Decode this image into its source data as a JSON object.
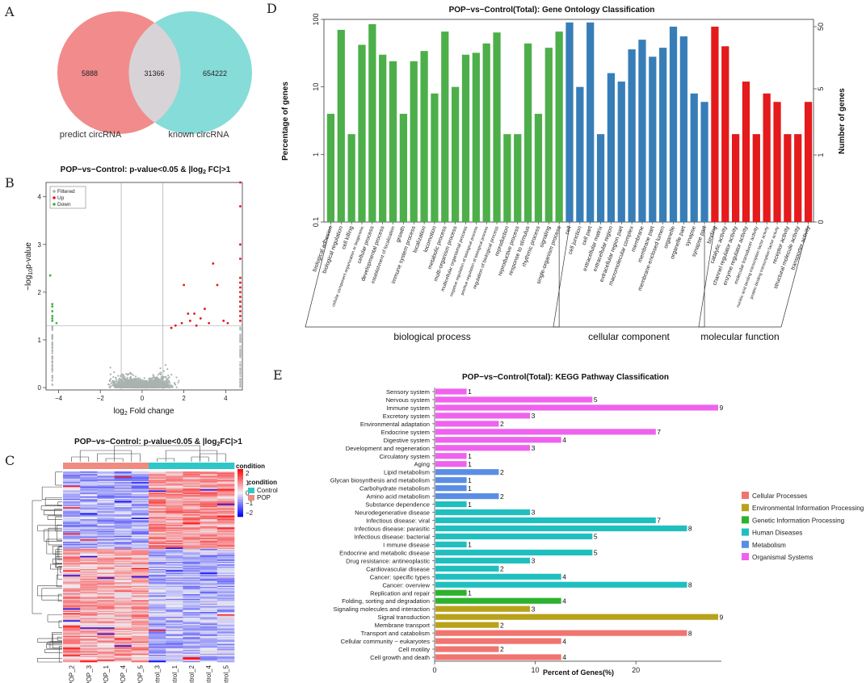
{
  "panels": {
    "a": "A",
    "b": "B",
    "c": "C",
    "d": "D",
    "e": "E"
  },
  "chart_data": [
    {
      "type": "venn",
      "sets": [
        "predict circRNA",
        "known circRNA"
      ],
      "left_only": "5888",
      "intersection": "31366",
      "right_only": "654222",
      "colors": {
        "left": "#f28b8b",
        "right": "#86dcd8",
        "overlap": "#d8d3d6"
      }
    },
    {
      "type": "scatter",
      "title_pre": "POP−vs−Control: p-value<0.05 & |log",
      "title_sub": "2",
      "title_post": " FC|>1",
      "xlabel_pre": "log",
      "xlabel_sub": "2",
      "xlabel_post": " Fold change",
      "ylabel_pre": "−log",
      "ylabel_sub": "10",
      "ylabel_post": "p-value",
      "xlim": [
        -4.6,
        4.8
      ],
      "ylim": [
        -0.05,
        4.3
      ],
      "xticks": [
        -4,
        -2,
        0,
        2,
        4
      ],
      "yticks": [
        0,
        1,
        2,
        3,
        4
      ],
      "xtick_labels": [
        "−4",
        "−2",
        "0",
        "2",
        "4"
      ],
      "ytick_labels": [
        "0",
        "1",
        "2",
        "3",
        "4"
      ],
      "thresholds": {
        "x": [
          -1,
          1
        ],
        "y": 1.3
      },
      "legend": [
        "Filtered",
        "Up",
        "Down"
      ],
      "colors": {
        "Filtered": "#a9b2b0",
        "Up": "#e4131b",
        "Down": "#3fb23f"
      },
      "up_points": [
        [
          1.4,
          1.25
        ],
        [
          1.6,
          1.3
        ],
        [
          1.9,
          1.35
        ],
        [
          2.0,
          2.15
        ],
        [
          2.2,
          1.55
        ],
        [
          2.3,
          1.4
        ],
        [
          2.5,
          1.55
        ],
        [
          2.6,
          1.3
        ],
        [
          2.8,
          1.45
        ],
        [
          3.0,
          1.65
        ],
        [
          3.2,
          1.35
        ],
        [
          3.4,
          2.6
        ],
        [
          3.6,
          2.15
        ],
        [
          3.9,
          1.4
        ],
        [
          4.1,
          1.35
        ],
        [
          4.7,
          4.3
        ],
        [
          4.7,
          3.8
        ],
        [
          4.7,
          3.0
        ],
        [
          4.7,
          2.7
        ],
        [
          4.7,
          2.3
        ],
        [
          4.7,
          2.2
        ],
        [
          4.7,
          2.1
        ],
        [
          4.7,
          2.0
        ],
        [
          4.7,
          1.9
        ],
        [
          4.7,
          1.8
        ],
        [
          4.7,
          1.7
        ],
        [
          4.7,
          1.6
        ],
        [
          4.7,
          1.5
        ],
        [
          4.7,
          1.4
        ]
      ],
      "down_points": [
        [
          -4.3,
          1.75
        ],
        [
          -4.3,
          1.7
        ],
        [
          -4.3,
          1.6
        ],
        [
          -4.3,
          1.5
        ],
        [
          -4.3,
          1.45
        ],
        [
          -4.3,
          1.4
        ],
        [
          -4.1,
          1.35
        ],
        [
          -4.4,
          2.35
        ]
      ]
    },
    {
      "type": "heatmap",
      "title_pre": "POP−vs−Control: p-value<0.05 & |log",
      "title_sub": "2",
      "title_post": "FC|>1",
      "columns": [
        "POP_2",
        "POP_3",
        "POP_1",
        "POP_4",
        "POP_5",
        "Control_3",
        "Control_1",
        "Control_2",
        "Control_4",
        "Control_5"
      ],
      "condition_label": "condition",
      "legend_title": "condition",
      "groups": [
        "Control",
        "POP"
      ],
      "group_colors": {
        "Control": "#2ec7c9",
        "POP": "#f08c7f"
      },
      "scale_ticks": [
        "2",
        "1",
        "0",
        "−1",
        "−2"
      ],
      "scale_range": [
        -2.4,
        2.4
      ],
      "row_count": 160
    },
    {
      "type": "bar",
      "title": "POP−vs−Control(Total): Gene Ontology Classification",
      "ylabel": "Percentage of genes",
      "ylabel_right": "Number of genes",
      "yscale": "log",
      "ylim": [
        0.1,
        100
      ],
      "yticks": [
        "100",
        "10",
        "1",
        "0.1"
      ],
      "right_ticks": [
        "50",
        "5",
        "1",
        "0"
      ],
      "categories": [
        "biological adhesion",
        "biological regulation",
        "cell killing",
        "cellular component organization or biogenesis",
        "cellular process",
        "developmental process",
        "establishment of localization",
        "growth",
        "immune system process",
        "localization",
        "locomotion",
        "metabolic process",
        "multi-organism process",
        "multicellular organismal process",
        "negative regulation of biological process",
        "positive regulation of biological process",
        "regulation of biological process",
        "reproduction",
        "reproductive process",
        "response to stimulus",
        "rhythmic process",
        "signaling",
        "single-organism process",
        "cell",
        "cell junction",
        "cell part",
        "extracellular matrix",
        "extracellular region",
        "extracellular region part",
        "macromolecular complex",
        "membrane",
        "membrane part",
        "membrane-enclosed lumen",
        "organelle",
        "organelle part",
        "synapse",
        "synapse part",
        "binding",
        "catalytic activity",
        "channel regulator activity",
        "enzyme regulator activity",
        "molecular transducer activity",
        "nucleic acid binding transcription factor activity",
        "protein binding transcription factor activity",
        "receptor activity",
        "structural molecule activity",
        "transporter activity"
      ],
      "values": [
        4,
        70,
        2,
        42,
        85,
        30,
        24,
        4,
        24,
        34,
        8,
        66,
        10,
        30,
        32,
        44,
        64,
        2,
        2,
        44,
        4,
        38,
        66,
        90,
        10,
        90,
        2,
        16,
        12,
        36,
        50,
        28,
        38,
        78,
        56,
        8,
        6,
        78,
        40,
        2,
        12,
        2,
        8,
        6,
        2,
        2,
        6
      ],
      "groups": [
        {
          "name": "biological process",
          "start": 0,
          "end": 22
        },
        {
          "name": "cellular component",
          "start": 23,
          "end": 36
        },
        {
          "name": "molecular function",
          "start": 37,
          "end": 46
        }
      ],
      "colors": {
        "biological process": "#4daf4a",
        "cellular component": "#377eb8",
        "molecular function": "#e41a1c"
      }
    },
    {
      "type": "bar",
      "orientation": "horizontal",
      "title": "POP−vs−Control(Total): KEGG Pathway Classification",
      "xlabel": "Percent of Genes(%)",
      "xlim": [
        0,
        28.5
      ],
      "xticks": [
        0,
        10,
        20
      ],
      "xtick_labels": [
        "0",
        "10",
        "20"
      ],
      "categories": [
        "Sensory system",
        "Nervous system",
        "Immune system",
        "Excretory system",
        "Environmental adaptation",
        "Endocrine system",
        "Digestive system",
        "Development and regeneration",
        "Circulatory system",
        "Aging",
        "Lipid metabolism",
        "Glycan biosynthesis and metabolism",
        "Carbohydrate metabolism",
        "Amino acid metabolism",
        "Substance dependence",
        "Neurodegenerative disease",
        "Infectious disease: viral",
        "Infectious disease: parasitic",
        "Infectious disease: bacterial",
        "I mmune disease",
        "Endocrine and metabolic disease",
        "Drug resistance: antineoplastic",
        "Cardiovascular disease",
        "Cancer: specific types",
        "Cancer: overview",
        "Replication and repair",
        "Folding, sorting and degradation",
        "Signaling molecules and interaction",
        "Signal transduction",
        "Membrane transport",
        "Transport and catabolism",
        "Cellular community − eukaryotes",
        "Cell motility",
        "Cell growth and death"
      ],
      "counts": [
        "1",
        "5",
        "9",
        "3",
        "2",
        "7",
        "4",
        "3",
        "1",
        "1",
        "2",
        "1",
        "1",
        "2",
        "1",
        "3",
        "7",
        "8",
        "5",
        "1",
        "5",
        "3",
        "2",
        "4",
        "8",
        "1",
        "4",
        "3",
        "9",
        "2",
        "8",
        "4",
        "2",
        "4"
      ],
      "percent": [
        3.1,
        15.6,
        28.1,
        9.4,
        6.3,
        21.9,
        12.5,
        9.4,
        3.1,
        3.1,
        6.3,
        3.1,
        3.1,
        6.3,
        3.1,
        9.4,
        21.9,
        25.0,
        15.6,
        3.1,
        15.6,
        9.4,
        6.3,
        12.5,
        25.0,
        3.1,
        12.5,
        9.4,
        28.1,
        6.3,
        25.0,
        12.5,
        6.3,
        12.5
      ],
      "class_index": [
        5,
        5,
        5,
        5,
        5,
        5,
        5,
        5,
        5,
        5,
        4,
        4,
        4,
        4,
        3,
        3,
        3,
        3,
        3,
        3,
        3,
        3,
        3,
        3,
        3,
        2,
        2,
        1,
        1,
        1,
        0,
        0,
        0,
        0
      ],
      "legend": [
        "Cellular Processes",
        "Environmental Information Processing",
        "Genetic Information Processing",
        "Human Diseases",
        "Metabolism",
        "Organismal Systems"
      ],
      "legend_colors": [
        "#f07470",
        "#b8a21a",
        "#2db22d",
        "#1fbfbf",
        "#5a8ee6",
        "#ef62ee"
      ]
    }
  ]
}
